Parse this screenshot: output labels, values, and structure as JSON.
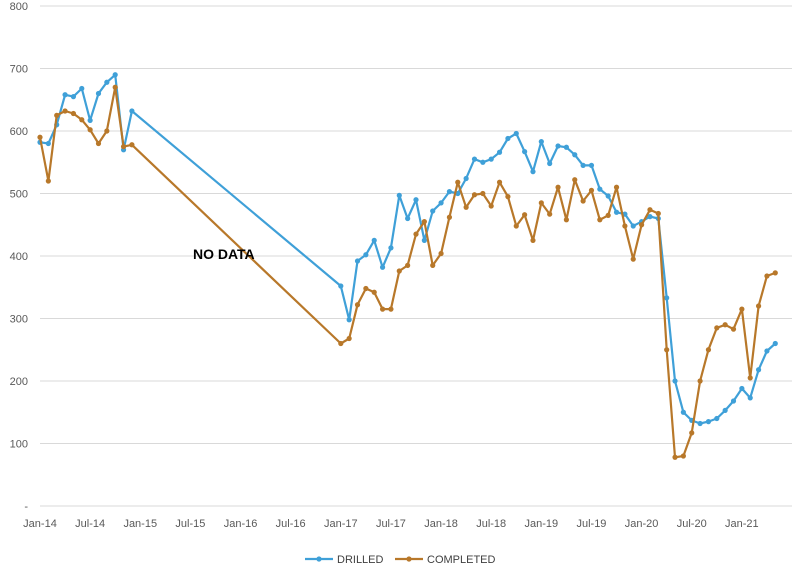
{
  "chart_data": {
    "type": "line",
    "title": "",
    "xlabel": "",
    "ylabel": "",
    "ylim": [
      0,
      800
    ],
    "y_ticks": [
      "-",
      "100",
      "200",
      "300",
      "400",
      "500",
      "600",
      "700",
      "800"
    ],
    "x_ticks": [
      "Jan-14",
      "Jul-14",
      "Jan-15",
      "Jul-15",
      "Jan-16",
      "Jul-16",
      "Jan-17",
      "Jul-17",
      "Jan-18",
      "Jul-18",
      "Jan-19",
      "Jul-19",
      "Jan-20",
      "Jul-20",
      "Jan-21"
    ],
    "x_tick_months": [
      0,
      6,
      12,
      18,
      24,
      30,
      36,
      42,
      48,
      54,
      60,
      66,
      72,
      78,
      84
    ],
    "xlim_months": [
      0,
      90
    ],
    "grid": "horizontal",
    "legend": "bottom",
    "annotation": "NO DATA",
    "annotation_at": {
      "month": 22,
      "value": 395
    },
    "series": [
      {
        "name": "DRILLED",
        "color": "#3fa0d8",
        "x_months": [
          0,
          1,
          2,
          3,
          4,
          5,
          6,
          7,
          8,
          9,
          10,
          11,
          12,
          36,
          37,
          38,
          39,
          40,
          41,
          42,
          43,
          44,
          45,
          46,
          47,
          48,
          49,
          50,
          51,
          52,
          53,
          54,
          55,
          56,
          57,
          58,
          59,
          60,
          61,
          62,
          63,
          64,
          65,
          66,
          67,
          68,
          69,
          70,
          71,
          72,
          73,
          74,
          75,
          76,
          77,
          78,
          79,
          80,
          81,
          82,
          83,
          84,
          85,
          86,
          87,
          88,
          89
        ],
        "values": [
          582,
          580,
          610,
          658,
          655,
          668,
          617,
          660,
          678,
          690,
          570,
          632,
          null,
          352,
          298,
          392,
          402,
          425,
          382,
          413,
          497,
          460,
          490,
          425,
          472,
          485,
          503,
          500,
          524,
          555,
          550,
          555,
          566,
          588,
          596,
          567,
          535,
          583,
          548,
          576,
          574,
          562,
          545,
          545,
          507,
          496,
          470,
          467,
          448,
          455,
          463,
          460,
          333,
          200,
          150,
          137,
          132,
          135,
          140,
          153,
          168,
          188,
          173,
          218,
          248,
          260,
          null
        ],
        "points": [
          [
            0,
            582
          ],
          [
            1,
            580
          ],
          [
            2,
            610
          ],
          [
            3,
            658
          ],
          [
            4,
            655
          ],
          [
            5,
            668
          ],
          [
            6,
            617
          ],
          [
            7,
            660
          ],
          [
            8,
            678
          ],
          [
            9,
            690
          ],
          [
            10,
            570
          ],
          [
            11,
            632
          ],
          [
            36,
            352
          ],
          [
            37,
            298
          ],
          [
            38,
            392
          ],
          [
            39,
            402
          ],
          [
            40,
            425
          ],
          [
            41,
            382
          ],
          [
            42,
            413
          ],
          [
            43,
            497
          ],
          [
            44,
            460
          ],
          [
            45,
            490
          ],
          [
            46,
            425
          ],
          [
            47,
            472
          ],
          [
            48,
            485
          ],
          [
            49,
            503
          ],
          [
            50,
            500
          ],
          [
            51,
            524
          ],
          [
            52,
            555
          ],
          [
            53,
            550
          ],
          [
            54,
            555
          ],
          [
            55,
            566
          ],
          [
            56,
            588
          ],
          [
            57,
            596
          ],
          [
            58,
            567
          ],
          [
            59,
            535
          ],
          [
            60,
            583
          ],
          [
            61,
            548
          ],
          [
            62,
            576
          ],
          [
            63,
            574
          ],
          [
            64,
            562
          ],
          [
            65,
            545
          ],
          [
            66,
            545
          ],
          [
            67,
            507
          ],
          [
            68,
            496
          ],
          [
            69,
            470
          ],
          [
            70,
            467
          ],
          [
            71,
            448
          ],
          [
            72,
            455
          ],
          [
            73,
            463
          ],
          [
            74,
            460
          ],
          [
            75,
            333
          ],
          [
            76,
            200
          ],
          [
            77,
            150
          ],
          [
            78,
            137
          ],
          [
            79,
            132
          ],
          [
            80,
            135
          ],
          [
            81,
            140
          ],
          [
            82,
            153
          ],
          [
            83,
            168
          ],
          [
            84,
            188
          ],
          [
            85,
            173
          ],
          [
            86,
            218
          ],
          [
            87,
            248
          ],
          [
            88,
            260
          ]
        ]
      },
      {
        "name": "COMPLETED",
        "color": "#b8782a",
        "points": [
          [
            0,
            590
          ],
          [
            1,
            520
          ],
          [
            2,
            625
          ],
          [
            3,
            632
          ],
          [
            4,
            628
          ],
          [
            5,
            618
          ],
          [
            6,
            602
          ],
          [
            7,
            580
          ],
          [
            8,
            600
          ],
          [
            9,
            670
          ],
          [
            10,
            575
          ],
          [
            11,
            578
          ],
          [
            36,
            260
          ],
          [
            37,
            268
          ],
          [
            38,
            322
          ],
          [
            39,
            348
          ],
          [
            40,
            342
          ],
          [
            41,
            315
          ],
          [
            42,
            315
          ],
          [
            43,
            376
          ],
          [
            44,
            385
          ],
          [
            45,
            435
          ],
          [
            46,
            455
          ],
          [
            47,
            385
          ],
          [
            48,
            404
          ],
          [
            49,
            462
          ],
          [
            50,
            518
          ],
          [
            51,
            478
          ],
          [
            52,
            498
          ],
          [
            53,
            500
          ],
          [
            54,
            480
          ],
          [
            55,
            518
          ],
          [
            56,
            495
          ],
          [
            57,
            448
          ],
          [
            58,
            466
          ],
          [
            59,
            425
          ],
          [
            60,
            485
          ],
          [
            61,
            467
          ],
          [
            62,
            510
          ],
          [
            63,
            458
          ],
          [
            64,
            522
          ],
          [
            65,
            488
          ],
          [
            66,
            505
          ],
          [
            67,
            458
          ],
          [
            68,
            465
          ],
          [
            69,
            510
          ],
          [
            70,
            448
          ],
          [
            71,
            395
          ],
          [
            72,
            450
          ],
          [
            73,
            474
          ],
          [
            74,
            468
          ],
          [
            75,
            250
          ],
          [
            76,
            78
          ],
          [
            77,
            80
          ],
          [
            78,
            117
          ],
          [
            79,
            200
          ],
          [
            80,
            250
          ],
          [
            81,
            285
          ],
          [
            82,
            290
          ],
          [
            83,
            283
          ],
          [
            84,
            315
          ],
          [
            85,
            205
          ],
          [
            86,
            320
          ],
          [
            87,
            368
          ],
          [
            88,
            373
          ]
        ]
      }
    ]
  }
}
